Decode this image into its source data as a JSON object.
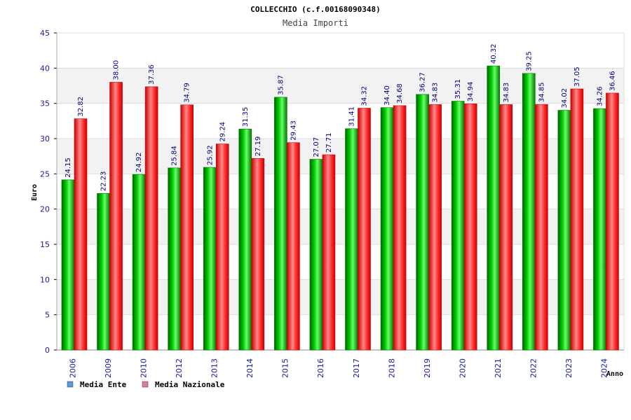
{
  "chart_data": {
    "type": "bar",
    "title": "COLLECCHIO (c.f.00168090348)",
    "subtitle": "Media Importi",
    "xlabel": "Anno",
    "ylabel": "Euro",
    "ylim": [
      0,
      45
    ],
    "yticks": [
      "0",
      "5",
      "10",
      "15",
      "20",
      "25",
      "30",
      "35",
      "40",
      "45"
    ],
    "grid": true,
    "legend_position": "bottom-left",
    "categories": [
      "2006",
      "2009",
      "2010",
      "2012",
      "2013",
      "2014",
      "2015",
      "2016",
      "2017",
      "2018",
      "2019",
      "2020",
      "2021",
      "2022",
      "2023",
      "2024"
    ],
    "series": [
      {
        "name": "Media Ente",
        "color": "#00aa00",
        "legend_color": "#5b9bd5",
        "values": [
          24.15,
          22.23,
          24.92,
          25.84,
          25.92,
          31.35,
          35.87,
          27.07,
          31.41,
          34.4,
          36.27,
          35.31,
          40.32,
          39.25,
          34.02,
          34.26
        ],
        "labels": [
          "24.15",
          "22.23",
          "24.92",
          "25.84",
          "25.92",
          "31.35",
          "35.87",
          "27.07",
          "31.41",
          "34.40",
          "36.27",
          "35.31",
          "40.32",
          "39.25",
          "34.02",
          "34.26"
        ]
      },
      {
        "name": "Media Nazionale",
        "color": "#ee1111",
        "legend_color": "#e07aa8",
        "values": [
          32.82,
          38.0,
          37.36,
          34.79,
          29.24,
          27.19,
          29.43,
          27.71,
          34.32,
          34.68,
          34.83,
          34.94,
          34.83,
          34.85,
          37.05,
          36.46
        ],
        "labels": [
          "32.82",
          "38.00",
          "37.36",
          "34.79",
          "29.24",
          "27.19",
          "29.43",
          "27.71",
          "34.32",
          "34.68",
          "34.83",
          "34.94",
          "34.83",
          "34.85",
          "37.05",
          "36.46"
        ]
      }
    ]
  }
}
